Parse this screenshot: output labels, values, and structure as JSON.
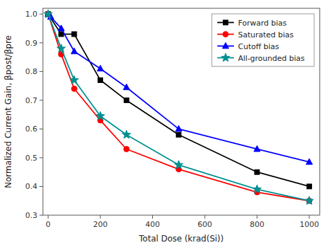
{
  "chart_data": {
    "type": "line",
    "xlabel": "Total Dose  (krad(Si))",
    "ylabel": "Normalized Current Gain, βpost/βpre",
    "xlim": [
      -20,
      1040
    ],
    "ylim": [
      0.3,
      1.02
    ],
    "xticks": [
      0,
      200,
      400,
      600,
      800,
      1000
    ],
    "yticks": [
      0.3,
      0.4,
      0.5,
      0.6,
      0.7,
      0.8,
      0.9,
      {
        "value": 1.0,
        "label": "1.0"
      }
    ],
    "grid": false,
    "legend": "upper right",
    "series": [
      {
        "name": "Forward bias",
        "color": "#000000",
        "marker": "square",
        "x": [
          0,
          50,
          100,
          200,
          300,
          500,
          800,
          1000
        ],
        "values": [
          1.0,
          0.93,
          0.93,
          0.77,
          0.7,
          0.58,
          0.45,
          0.4
        ]
      },
      {
        "name": "Saturated bias",
        "color": "#ff0000",
        "marker": "circle",
        "x": [
          0,
          50,
          100,
          200,
          300,
          500,
          800,
          1000
        ],
        "values": [
          1.0,
          0.86,
          0.74,
          0.63,
          0.53,
          0.46,
          0.38,
          0.35
        ]
      },
      {
        "name": "Cutoff bias",
        "color": "#0000ff",
        "marker": "triangle",
        "x": [
          0,
          10,
          50,
          100,
          200,
          300,
          500,
          800,
          1000
        ],
        "values": [
          1.0,
          0.99,
          0.95,
          0.87,
          0.81,
          0.745,
          0.6,
          0.53,
          0.485
        ]
      },
      {
        "name": "All-grounded bias",
        "color": "#009090",
        "marker": "star",
        "x": [
          0,
          50,
          100,
          200,
          300,
          500,
          800,
          1000
        ],
        "values": [
          1.0,
          0.88,
          0.77,
          0.645,
          0.58,
          0.475,
          0.39,
          0.35
        ]
      }
    ]
  }
}
